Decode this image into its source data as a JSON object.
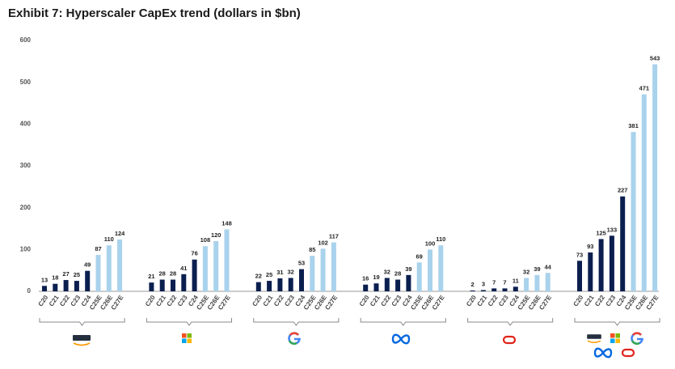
{
  "chart_data": {
    "type": "bar",
    "title": "Exhibit 7: Hyperscaler CapEx trend (dollars in $bn)",
    "categories": [
      "C20",
      "C21",
      "C22",
      "C23",
      "C24",
      "C25E",
      "C26E",
      "C27E"
    ],
    "bar_colors": [
      "#0b1f4f",
      "#0b1f4f",
      "#0b1f4f",
      "#0b1f4f",
      "#0b1f4f",
      "#a9d2ec",
      "#a9d2ec",
      "#a9d2ec"
    ],
    "groups": [
      {
        "values": [
          13,
          18,
          27,
          25,
          49,
          87,
          110,
          124
        ]
      },
      {
        "values": [
          21,
          28,
          28,
          41,
          76,
          108,
          120,
          148
        ]
      },
      {
        "values": [
          22,
          25,
          31,
          32,
          53,
          85,
          102,
          117
        ]
      },
      {
        "values": [
          16,
          19,
          32,
          28,
          39,
          69,
          100,
          110
        ]
      },
      {
        "values": [
          2,
          3,
          7,
          7,
          11,
          32,
          39,
          44
        ]
      },
      {
        "values": [
          73,
          93,
          125,
          133,
          227,
          381,
          471,
          543
        ]
      }
    ],
    "ylim": [
      0,
      600
    ],
    "yticks": [
      0,
      100,
      200,
      300,
      400,
      500,
      600
    ]
  }
}
